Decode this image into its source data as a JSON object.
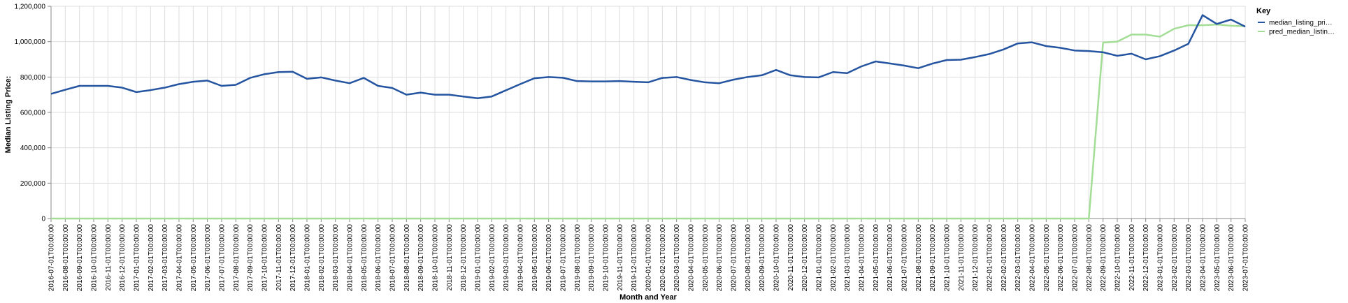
{
  "chart_data": {
    "type": "line",
    "xlabel": "Month and Year",
    "ylabel": "Median Listing Price:",
    "ylim": [
      0,
      1200000
    ],
    "y_ticks": [
      "0",
      "200,000",
      "400,000",
      "600,000",
      "800,000",
      "1,000,000",
      "1,200,000"
    ],
    "grid": true,
    "legend": {
      "title": "Key",
      "placement": "top-right"
    },
    "categories": [
      "2016-07-01T00:00:00",
      "2016-08-01T00:00:00",
      "2016-09-01T00:00:00",
      "2016-10-01T00:00:00",
      "2016-11-01T00:00:00",
      "2016-12-01T00:00:00",
      "2017-01-01T00:00:00",
      "2017-02-01T00:00:00",
      "2017-03-01T00:00:00",
      "2017-04-01T00:00:00",
      "2017-05-01T00:00:00",
      "2017-06-01T00:00:00",
      "2017-07-01T00:00:00",
      "2017-08-01T00:00:00",
      "2017-09-01T00:00:00",
      "2017-10-01T00:00:00",
      "2017-11-01T00:00:00",
      "2017-12-01T00:00:00",
      "2018-01-01T00:00:00",
      "2018-02-01T00:00:00",
      "2018-03-01T00:00:00",
      "2018-04-01T00:00:00",
      "2018-05-01T00:00:00",
      "2018-06-01T00:00:00",
      "2018-07-01T00:00:00",
      "2018-08-01T00:00:00",
      "2018-09-01T00:00:00",
      "2018-10-01T00:00:00",
      "2018-11-01T00:00:00",
      "2018-12-01T00:00:00",
      "2019-01-01T00:00:00",
      "2019-02-01T00:00:00",
      "2019-03-01T00:00:00",
      "2019-04-01T00:00:00",
      "2019-05-01T00:00:00",
      "2019-06-01T00:00:00",
      "2019-07-01T00:00:00",
      "2019-08-01T00:00:00",
      "2019-09-01T00:00:00",
      "2019-10-01T00:00:00",
      "2019-11-01T00:00:00",
      "2019-12-01T00:00:00",
      "2020-01-01T00:00:00",
      "2020-02-01T00:00:00",
      "2020-03-01T00:00:00",
      "2020-04-01T00:00:00",
      "2020-05-01T00:00:00",
      "2020-06-01T00:00:00",
      "2020-07-01T00:00:00",
      "2020-08-01T00:00:00",
      "2020-09-01T00:00:00",
      "2020-10-01T00:00:00",
      "2020-11-01T00:00:00",
      "2020-12-01T00:00:00",
      "2021-01-01T00:00:00",
      "2021-02-01T00:00:00",
      "2021-03-01T00:00:00",
      "2021-04-01T00:00:00",
      "2021-05-01T00:00:00",
      "2021-06-01T00:00:00",
      "2021-07-01T00:00:00",
      "2021-08-01T00:00:00",
      "2021-09-01T00:00:00",
      "2021-10-01T00:00:00",
      "2021-11-01T00:00:00",
      "2021-12-01T00:00:00",
      "2022-01-01T00:00:00",
      "2022-02-01T00:00:00",
      "2022-03-01T00:00:00",
      "2022-04-01T00:00:00",
      "2022-05-01T00:00:00",
      "2022-06-01T00:00:00",
      "2022-07-01T00:00:00",
      "2022-08-01T00:00:00",
      "2022-09-01T00:00:00",
      "2022-10-01T00:00:00",
      "2022-11-01T00:00:00",
      "2022-12-01T00:00:00",
      "2023-01-01T00:00:00",
      "2023-02-01T00:00:00",
      "2023-03-01T00:00:00",
      "2023-04-01T00:00:00",
      "2023-05-01T00:00:00",
      "2023-06-01T00:00:00",
      "2023-07-01T00:00:00"
    ],
    "series": [
      {
        "name": "median_listing_pri…",
        "color": "#2554a0",
        "values": [
          705000,
          728000,
          750000,
          750000,
          750000,
          740000,
          715000,
          726000,
          740000,
          760000,
          773000,
          780000,
          750000,
          756000,
          795000,
          816000,
          828000,
          830000,
          790000,
          798000,
          780000,
          765000,
          795000,
          750000,
          738000,
          700000,
          712000,
          700000,
          700000,
          690000,
          680000,
          690000,
          725000,
          760000,
          793000,
          800000,
          796000,
          777000,
          775000,
          775000,
          777000,
          773000,
          770000,
          795000,
          800000,
          783000,
          770000,
          765000,
          785000,
          800000,
          810000,
          840000,
          810000,
          800000,
          798000,
          828000,
          822000,
          860000,
          888000,
          877000,
          865000,
          850000,
          876000,
          896000,
          898000,
          913000,
          930000,
          956000,
          990000,
          996000,
          975000,
          965000,
          950000,
          947000,
          940000,
          920000,
          932000,
          900000,
          918000,
          950000,
          988000,
          1150000,
          1100000,
          1125000,
          1085000
        ]
      },
      {
        "name": "pred_median_listin…",
        "color": "#a3dd96",
        "values": [
          0,
          0,
          0,
          0,
          0,
          0,
          0,
          0,
          0,
          0,
          0,
          0,
          0,
          0,
          0,
          0,
          0,
          0,
          0,
          0,
          0,
          0,
          0,
          0,
          0,
          0,
          0,
          0,
          0,
          0,
          0,
          0,
          0,
          0,
          0,
          0,
          0,
          0,
          0,
          0,
          0,
          0,
          0,
          0,
          0,
          0,
          0,
          0,
          0,
          0,
          0,
          0,
          0,
          0,
          0,
          0,
          0,
          0,
          0,
          0,
          0,
          0,
          0,
          0,
          0,
          0,
          0,
          0,
          0,
          0,
          0,
          0,
          0,
          0,
          995000,
          1000000,
          1040000,
          1040000,
          1028000,
          1073000,
          1093000,
          1093000,
          1097000,
          1090000,
          1087000
        ]
      }
    ]
  }
}
